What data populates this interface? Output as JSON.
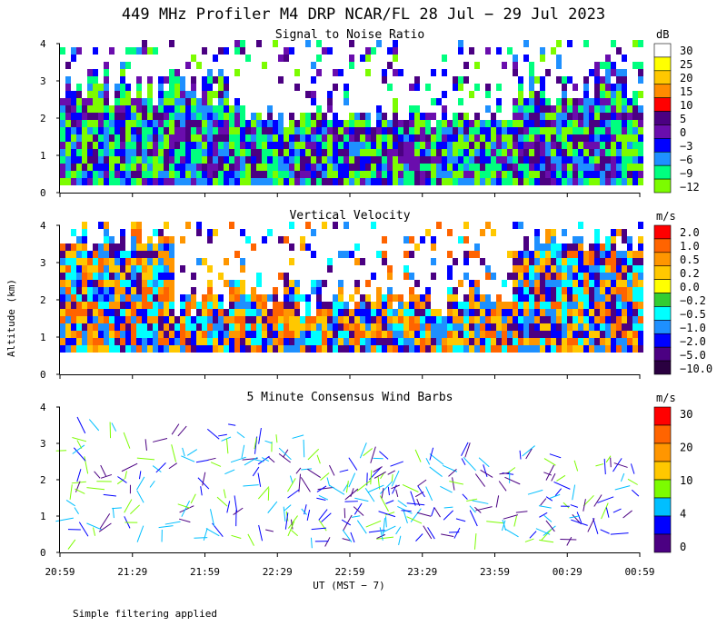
{
  "title": "449 MHz Profiler M4 DRP NCAR/FL 28 Jul − 29 Jul 2023",
  "footnote": "Simple filtering applied",
  "y_axis_label": "Altitude (km)",
  "x_axis_label": "UT  (MST − 7)",
  "time_ticks": [
    "20:59",
    "21:29",
    "21:59",
    "22:29",
    "22:59",
    "23:29",
    "23:59",
    "00:29",
    "00:59"
  ],
  "altitude_ticks": [
    "0",
    "1",
    "2",
    "3",
    "4"
  ],
  "chart_data": [
    {
      "type": "heatmap",
      "title": "Signal to Noise Ratio",
      "ylabel": "Altitude (km)",
      "xlabel": "UT  (MST − 7)",
      "ylim": [
        0,
        4
      ],
      "x_range": [
        "20:59",
        "00:59"
      ],
      "colorbar": {
        "unit": "dB",
        "labels": [
          "30",
          "25",
          "20",
          "15",
          "10",
          "5",
          "0",
          "−3",
          "−6",
          "−9",
          "−12"
        ],
        "colors": [
          "#ffffff",
          "#ffff00",
          "#ffc800",
          "#ff8c00",
          "#ff0000",
          "#4b0082",
          "#6a0dad",
          "#0000ff",
          "#1e90ff",
          "#00ff7f",
          "#7cfc00"
        ]
      }
    },
    {
      "type": "heatmap",
      "title": "Vertical Velocity",
      "ylabel": "Altitude (km)",
      "xlabel": "UT  (MST − 7)",
      "ylim": [
        0,
        4
      ],
      "x_range": [
        "20:59",
        "00:59"
      ],
      "colorbar": {
        "unit": "m/s",
        "labels": [
          "2.0",
          "1.0",
          "0.5",
          "0.2",
          "0.0",
          "−0.2",
          "−0.5",
          "−1.0",
          "−2.0",
          "−5.0",
          "−10.0"
        ],
        "colors": [
          "#ff0000",
          "#ff6400",
          "#ff9600",
          "#ffc800",
          "#ffff00",
          "#32cd32",
          "#00ffff",
          "#1e90ff",
          "#0000ff",
          "#4b0082",
          "#2a0040"
        ]
      }
    },
    {
      "type": "scatter",
      "title": "5 Minute Consensus Wind Barbs",
      "ylabel": "Altitude (km)",
      "xlabel": "UT  (MST − 7)",
      "ylim": [
        0,
        4
      ],
      "x_range": [
        "20:59",
        "00:59"
      ],
      "colorbar": {
        "unit": "m/s",
        "labels": [
          "30",
          "20",
          "10",
          "4",
          "0"
        ],
        "colors": [
          "#ff0000",
          "#ff6400",
          "#ff9600",
          "#ffc800",
          "#7cfc00",
          "#00bfff",
          "#0000ff",
          "#4b0082"
        ]
      }
    }
  ]
}
